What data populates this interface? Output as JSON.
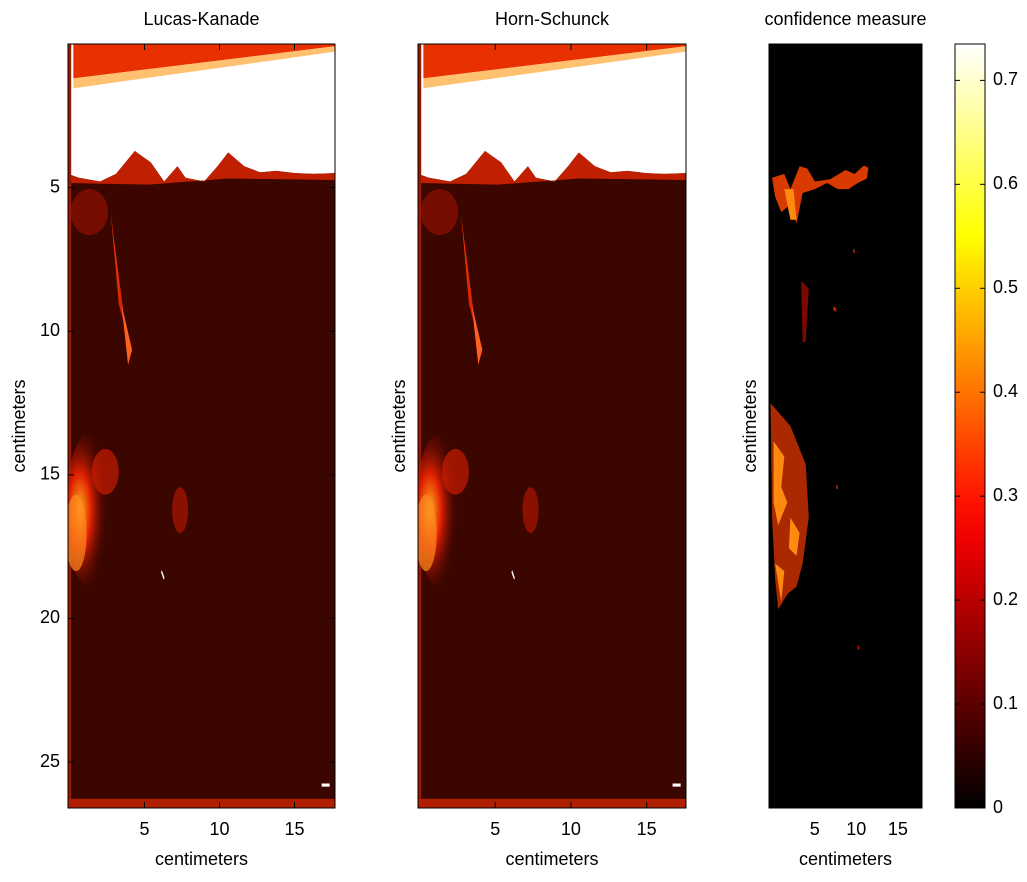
{
  "chart_data": [
    {
      "type": "image",
      "title": "Lucas-Kanade",
      "x_label": "centimeters",
      "y_label": "centimeters",
      "xlim": [
        -0.1,
        17.7
      ],
      "xticks": [
        5,
        10,
        15
      ],
      "ylim": [
        26.6,
        0
      ],
      "yticks": [
        5,
        10,
        15,
        20,
        25
      ]
    },
    {
      "type": "image",
      "title": "Horn-Schunck",
      "x_label": "centimeters",
      "y_label": "centimeters",
      "xlim": [
        -0.1,
        17.6
      ],
      "xticks": [
        5,
        10,
        15
      ]
    },
    {
      "type": "image",
      "title": "confidence measure",
      "x_label": "centimeters",
      "y_label": "centimeters",
      "xlim": [
        -0.5,
        17.9
      ],
      "xticks": [
        5,
        10,
        15
      ]
    },
    {
      "type": "colorbar",
      "colormap": "hot",
      "clim": [
        0,
        0.735
      ],
      "ticks": [
        0,
        0.1,
        0.2,
        0.3,
        0.4,
        0.5,
        0.6,
        0.7
      ]
    }
  ]
}
